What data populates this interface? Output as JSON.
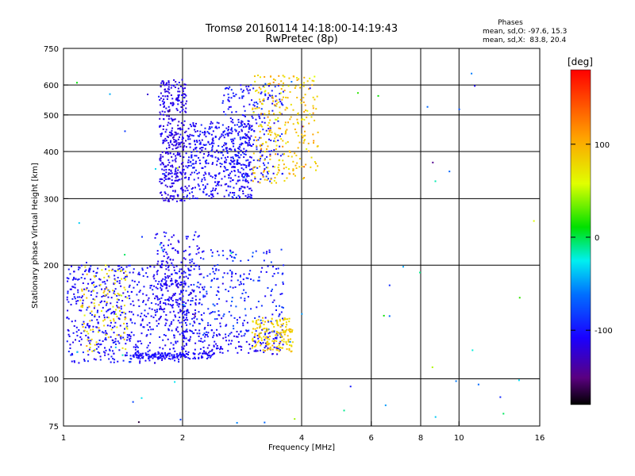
{
  "header": {
    "title": "Tromsø 20160114 14:18:00-14:19:43",
    "subtitle": "RwPretec (8p)"
  },
  "phases": {
    "title": "Phases",
    "line_o": "mean, sd,O: -97.6, 15.3",
    "line_x": "mean, sd,X:  83.8, 20.4"
  },
  "colorbar": {
    "label": "[deg]",
    "ticks": [
      {
        "value": 100,
        "label": "100"
      },
      {
        "value": 0,
        "label": "0"
      },
      {
        "value": -100,
        "label": "-100"
      }
    ],
    "range": [
      -180,
      180
    ]
  },
  "chart_data": {
    "type": "scatter",
    "title": "Tromsø 20160114 14:18:00-14:19:43",
    "subtitle": "RwPretec (8p)",
    "xlabel": "Frequency [MHz]",
    "ylabel": "Stationary phase Virtual Height [km]",
    "x_scale": "log",
    "y_scale": "log",
    "xlim": [
      1,
      16
    ],
    "ylim": [
      75,
      750
    ],
    "x_ticks": [
      {
        "value": 1,
        "label": "1"
      },
      {
        "value": 2,
        "label": "2"
      },
      {
        "value": 4,
        "label": "4"
      },
      {
        "value": 6,
        "label": "6"
      },
      {
        "value": 8,
        "label": "8"
      },
      {
        "value": 10,
        "label": "10"
      },
      {
        "value": 16,
        "label": "16"
      }
    ],
    "y_ticks": [
      {
        "value": 75,
        "label": "75"
      },
      {
        "value": 100,
        "label": "100"
      },
      {
        "value": 200,
        "label": "200"
      },
      {
        "value": 300,
        "label": "300"
      },
      {
        "value": 400,
        "label": "400"
      },
      {
        "value": 500,
        "label": "500"
      },
      {
        "value": 600,
        "label": "600"
      },
      {
        "value": 750,
        "label": "750"
      }
    ],
    "grid_x": [
      2,
      4,
      6,
      8,
      10
    ],
    "grid_y": [
      100,
      200,
      300,
      400,
      500,
      600
    ],
    "grid": true,
    "color_variable": "phase [deg]",
    "clusters": [
      {
        "fmin": 1.02,
        "fmax": 2.05,
        "hmin": 110,
        "hmax": 200,
        "phase": -105,
        "sd": 12,
        "n": 650
      },
      {
        "fmin": 1.1,
        "fmax": 1.45,
        "hmin": 118,
        "hmax": 200,
        "phase": 80,
        "sd": 22,
        "n": 110
      },
      {
        "fmin": 1.5,
        "fmax": 2.4,
        "hmin": 113,
        "hmax": 117,
        "phase": -105,
        "sd": 8,
        "n": 120
      },
      {
        "fmin": 2.0,
        "fmax": 3.6,
        "hmin": 116,
        "hmax": 135,
        "phase": -110,
        "sd": 10,
        "n": 160
      },
      {
        "fmin": 1.7,
        "fmax": 2.25,
        "hmin": 140,
        "hmax": 245,
        "phase": -110,
        "sd": 10,
        "n": 200
      },
      {
        "fmin": 2.05,
        "fmax": 3.6,
        "hmin": 130,
        "hmax": 220,
        "phase": -95,
        "sd": 18,
        "n": 260
      },
      {
        "fmin": 3.0,
        "fmax": 3.8,
        "hmin": 118,
        "hmax": 145,
        "phase": 85,
        "sd": 15,
        "n": 160
      },
      {
        "fmin": 1.75,
        "fmax": 2.05,
        "hmin": 295,
        "hmax": 620,
        "phase": -115,
        "sd": 10,
        "n": 380
      },
      {
        "fmin": 2.05,
        "fmax": 3.0,
        "hmin": 300,
        "hmax": 480,
        "phase": -105,
        "sd": 14,
        "n": 450
      },
      {
        "fmin": 2.5,
        "fmax": 3.6,
        "hmin": 330,
        "hmax": 600,
        "phase": -100,
        "sd": 15,
        "n": 240
      },
      {
        "fmin": 3.0,
        "fmax": 4.4,
        "hmin": 330,
        "hmax": 640,
        "phase": 90,
        "sd": 25,
        "n": 280
      },
      {
        "fmin": 1.0,
        "fmax": 16.0,
        "hmin": 75,
        "hmax": 650,
        "phase": -60,
        "sd": 80,
        "n": 70
      }
    ]
  }
}
